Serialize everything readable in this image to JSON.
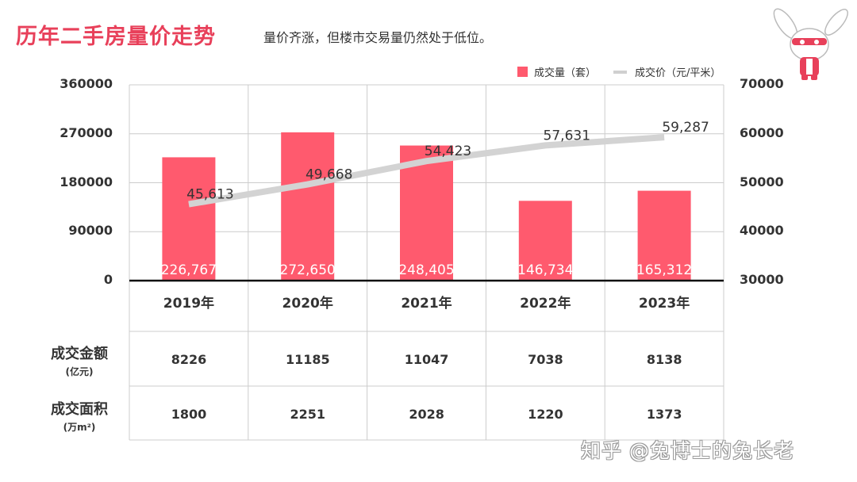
{
  "title": "历年二手房量价走势",
  "subtitle": "量价齐涨，但楼市交易量仍然处于低位。",
  "watermark": "知乎 @兔博士的兔长老",
  "colors": {
    "bar": "#ff5a6e",
    "line": "#d3d3d3",
    "title": "#e8405a",
    "grid": "#cccccc",
    "axis": "#111111"
  },
  "chart_data": {
    "type": "bar+line",
    "categories": [
      "2019年",
      "2020年",
      "2021年",
      "2022年",
      "2023年"
    ],
    "series": [
      {
        "name": "成交量（套）",
        "type": "bar",
        "axis": "left",
        "values": [
          226767,
          272650,
          248405,
          146734,
          165312
        ],
        "labels": [
          "226,767",
          "272,650",
          "248,405",
          "146,734",
          "165,312"
        ]
      },
      {
        "name": "成交价（元/平米）",
        "type": "line",
        "axis": "right",
        "values": [
          45613,
          49668,
          54423,
          57631,
          59287
        ],
        "labels": [
          "45,613",
          "49,668",
          "54,423",
          "57,631",
          "59,287"
        ]
      }
    ],
    "y_left": {
      "ylim": [
        0,
        360000
      ],
      "ticks": [
        "0",
        "90000",
        "180000",
        "270000",
        "360000"
      ]
    },
    "y_right": {
      "ylim": [
        30000,
        70000
      ],
      "ticks": [
        "30000",
        "40000",
        "50000",
        "60000",
        "70000"
      ]
    },
    "grid": true,
    "legend_position": "top-right"
  },
  "table": {
    "rows": [
      {
        "label": "成交金额",
        "unit": "(亿元)",
        "values": [
          "8226",
          "11185",
          "11047",
          "7038",
          "8138"
        ]
      },
      {
        "label": "成交面积",
        "unit": "(万m²)",
        "values": [
          "1800",
          "2251",
          "2028",
          "1220",
          "1373"
        ]
      }
    ]
  }
}
